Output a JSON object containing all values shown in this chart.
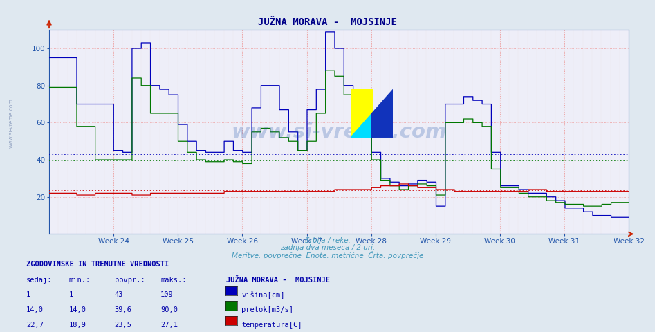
{
  "title": "JUŽNA MORAVA -  MOJSINJE",
  "subtitle1": "Srbija / reke.",
  "subtitle2": "zadnja dva meseca / 2 uri.",
  "subtitle3": "Meritve: povprečne  Enote: metrične  Črta: povprečje",
  "legend_title": "JUŽNA MORAVA -  MOJSINJE",
  "ylim": [
    0,
    110
  ],
  "yticks": [
    20,
    40,
    60,
    80,
    100
  ],
  "n_weeks": 9,
  "week_labels": [
    "Week 24",
    "Week 25",
    "Week 26",
    "Week 27",
    "Week 28",
    "Week 29",
    "Week 30",
    "Week 31",
    "Week 32"
  ],
  "avg_visina": 43,
  "avg_pretok": 39.6,
  "avg_temperatura": 23.5,
  "color_visina": "#0000bb",
  "color_pretok": "#007700",
  "color_temperatura": "#cc0000",
  "title_color": "#000088",
  "subtitle_color": "#4499bb",
  "stats_header_color": "#0000aa",
  "grid_color_major": "#ee9999",
  "grid_color_minor": "#ddcccc",
  "bg_color": "#dfe8f0",
  "plot_bg_color": "#eeeef8",
  "stats_headers": [
    "sedaj:",
    "min.:",
    "povpr.:",
    "maks.:"
  ],
  "stats_visina": [
    "1",
    "1",
    "43",
    "109"
  ],
  "stats_pretok": [
    "14,0",
    "14,0",
    "39,6",
    "90,0"
  ],
  "stats_temp": [
    "22,7",
    "18,9",
    "23,5",
    "27,1"
  ],
  "legend_labels": [
    "višina[cm]",
    "pretok[m3/s]",
    "temperatura[C]"
  ],
  "watermark": "www.si-vreme.com"
}
